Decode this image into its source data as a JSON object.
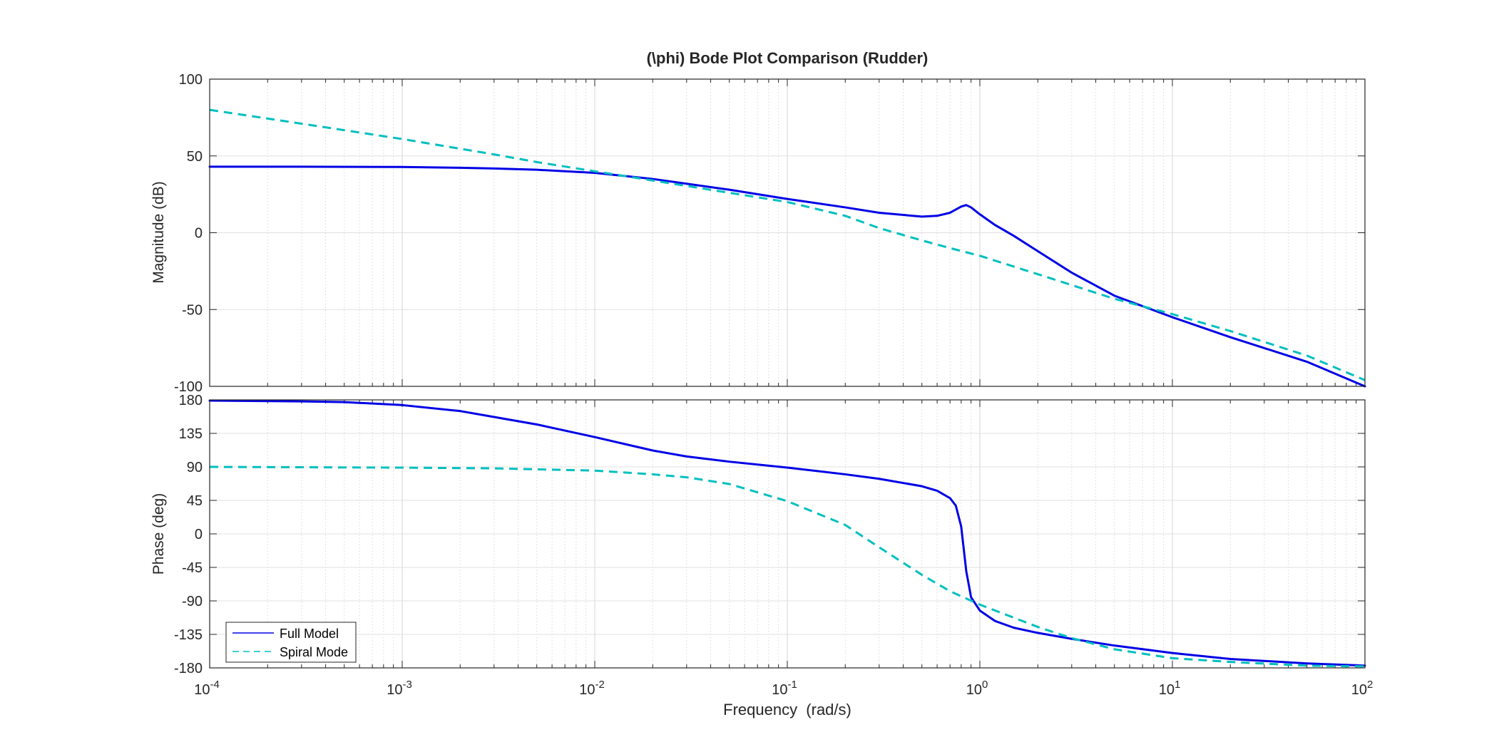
{
  "chart_data": {
    "type": "line",
    "title": "(\\phi) Bode Plot Comparison (Rudder)",
    "xlabel": "Frequency  (rad/s)",
    "x_scale": "log",
    "xlim": [
      0.0001,
      100
    ],
    "x_tick_labels": [
      {
        "base": "10",
        "exp": "-4"
      },
      {
        "base": "10",
        "exp": "-3"
      },
      {
        "base": "10",
        "exp": "-2"
      },
      {
        "base": "10",
        "exp": "-1"
      },
      {
        "base": "10",
        "exp": "0"
      },
      {
        "base": "10",
        "exp": "1"
      },
      {
        "base": "10",
        "exp": "2"
      }
    ],
    "grid": true,
    "legend": {
      "location": "bottom-left",
      "panel": "phase",
      "entries": [
        {
          "name": "Full Model",
          "color": "#0000e6",
          "style": "solid"
        },
        {
          "name": "Spiral Mode",
          "color": "#00bfbf",
          "style": "dashed"
        }
      ]
    },
    "panels": [
      {
        "id": "magnitude",
        "ylabel": "Magnitude (dB)",
        "ylim": [
          -100,
          100
        ],
        "yticks": [
          "100",
          "50",
          "0",
          "-50",
          "-100"
        ],
        "series": [
          {
            "name": "Full Model",
            "color": "#0000e6",
            "style": "solid",
            "points": [
              [
                0.0001,
                43
              ],
              [
                0.0003,
                43
              ],
              [
                0.001,
                42.8
              ],
              [
                0.002,
                42.3
              ],
              [
                0.003,
                41.8
              ],
              [
                0.005,
                41
              ],
              [
                0.01,
                39
              ],
              [
                0.02,
                35
              ],
              [
                0.05,
                28
              ],
              [
                0.1,
                22
              ],
              [
                0.2,
                16.5
              ],
              [
                0.3,
                13
              ],
              [
                0.5,
                10.5
              ],
              [
                0.6,
                11
              ],
              [
                0.7,
                13
              ],
              [
                0.8,
                17
              ],
              [
                0.85,
                18
              ],
              [
                0.9,
                16.5
              ],
              [
                1.0,
                12
              ],
              [
                1.2,
                5
              ],
              [
                1.5,
                -2
              ],
              [
                2,
                -12
              ],
              [
                3,
                -26
              ],
              [
                5,
                -41
              ],
              [
                10,
                -55
              ],
              [
                20,
                -68
              ],
              [
                50,
                -84
              ],
              [
                100,
                -100
              ]
            ]
          },
          {
            "name": "Spiral Mode",
            "color": "#00bfbf",
            "style": "dashed",
            "points": [
              [
                0.0001,
                80
              ],
              [
                0.0003,
                71
              ],
              [
                0.001,
                61
              ],
              [
                0.003,
                51
              ],
              [
                0.005,
                46
              ],
              [
                0.01,
                40
              ],
              [
                0.02,
                34
              ],
              [
                0.05,
                26
              ],
              [
                0.1,
                20
              ],
              [
                0.2,
                11
              ],
              [
                0.3,
                3
              ],
              [
                0.5,
                -5
              ],
              [
                0.7,
                -10
              ],
              [
                1,
                -15
              ],
              [
                2,
                -27
              ],
              [
                5,
                -43
              ],
              [
                10,
                -53
              ],
              [
                20,
                -64
              ],
              [
                50,
                -80
              ],
              [
                100,
                -96
              ]
            ]
          }
        ]
      },
      {
        "id": "phase",
        "ylabel": "Phase (deg)",
        "ylim": [
          -180,
          180
        ],
        "yticks": [
          "180",
          "135",
          "90",
          "45",
          "0",
          "-45",
          "-90",
          "-135",
          "-180"
        ],
        "series": [
          {
            "name": "Full Model",
            "color": "#0000e6",
            "style": "solid",
            "points": [
              [
                0.0001,
                179
              ],
              [
                0.0003,
                178
              ],
              [
                0.0005,
                177
              ],
              [
                0.001,
                173
              ],
              [
                0.002,
                165
              ],
              [
                0.003,
                157
              ],
              [
                0.005,
                147
              ],
              [
                0.01,
                130
              ],
              [
                0.02,
                112
              ],
              [
                0.03,
                104
              ],
              [
                0.05,
                97
              ],
              [
                0.1,
                89
              ],
              [
                0.2,
                80
              ],
              [
                0.3,
                74
              ],
              [
                0.5,
                64
              ],
              [
                0.6,
                58
              ],
              [
                0.7,
                48
              ],
              [
                0.75,
                38
              ],
              [
                0.8,
                10
              ],
              [
                0.85,
                -50
              ],
              [
                0.9,
                -85
              ],
              [
                1.0,
                -103
              ],
              [
                1.2,
                -117
              ],
              [
                1.5,
                -126
              ],
              [
                2,
                -133
              ],
              [
                3,
                -141
              ],
              [
                5,
                -150
              ],
              [
                10,
                -160
              ],
              [
                20,
                -168
              ],
              [
                50,
                -174
              ],
              [
                100,
                -177
              ]
            ]
          },
          {
            "name": "Spiral Mode",
            "color": "#00bfbf",
            "style": "dashed",
            "points": [
              [
                0.0001,
                90
              ],
              [
                0.001,
                89
              ],
              [
                0.003,
                88
              ],
              [
                0.01,
                85
              ],
              [
                0.02,
                80
              ],
              [
                0.03,
                76
              ],
              [
                0.05,
                67
              ],
              [
                0.1,
                44
              ],
              [
                0.2,
                12
              ],
              [
                0.3,
                -18
              ],
              [
                0.5,
                -55
              ],
              [
                0.7,
                -77
              ],
              [
                1,
                -95
              ],
              [
                2,
                -125
              ],
              [
                3,
                -140
              ],
              [
                5,
                -155
              ],
              [
                10,
                -167
              ],
              [
                20,
                -172
              ],
              [
                50,
                -177
              ],
              [
                100,
                -178
              ]
            ]
          }
        ]
      }
    ]
  }
}
